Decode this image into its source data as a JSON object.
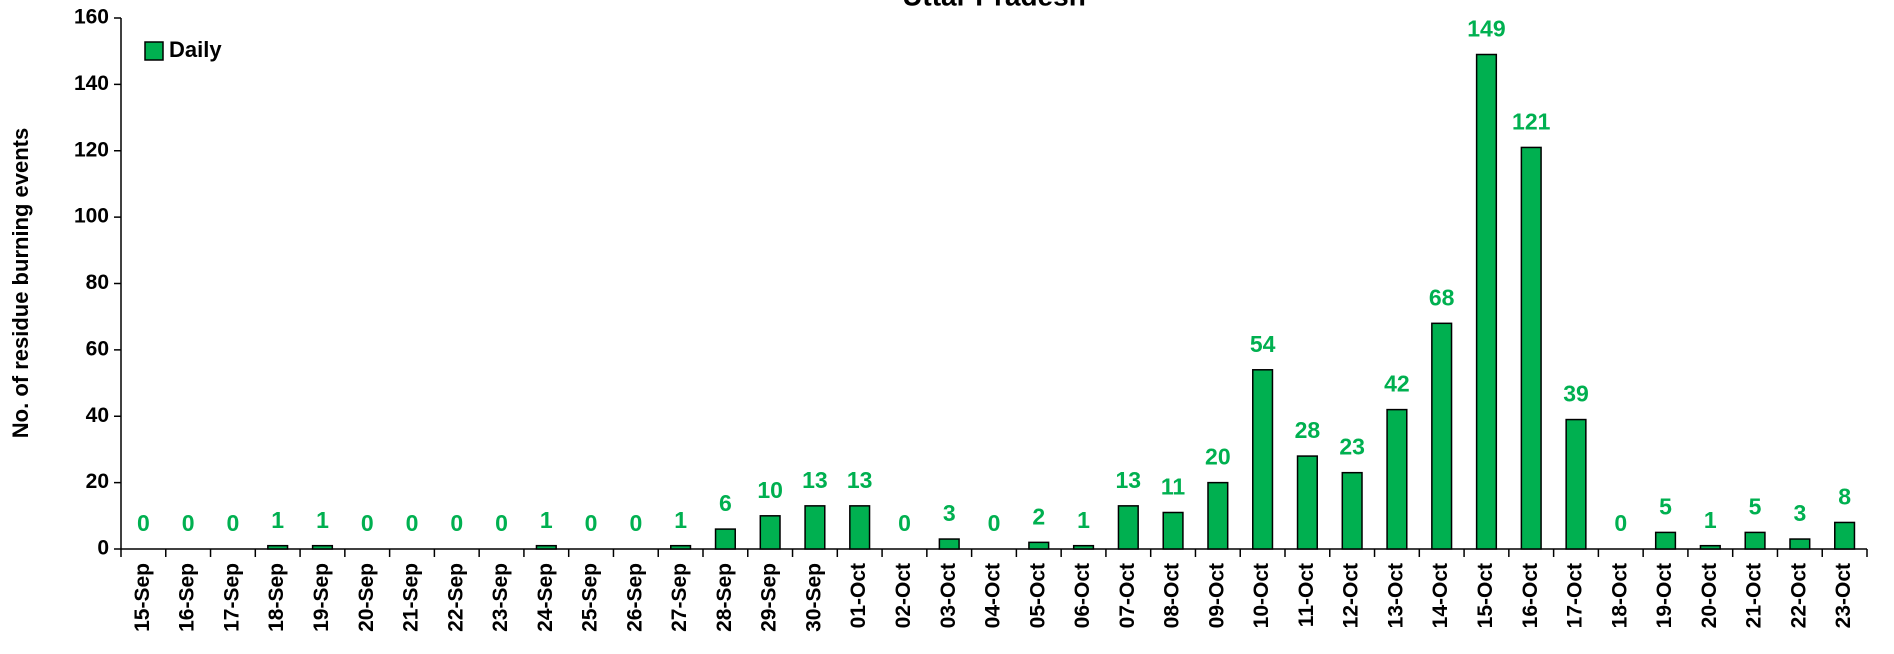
{
  "chart_data": {
    "type": "bar",
    "title": "Uttar Pradesh",
    "y_label": "No. of residue burning events",
    "categories": [
      "15-Sep",
      "16-Sep",
      "17-Sep",
      "18-Sep",
      "19-Sep",
      "20-Sep",
      "21-Sep",
      "22-Sep",
      "23-Sep",
      "24-Sep",
      "25-Sep",
      "26-Sep",
      "27-Sep",
      "28-Sep",
      "29-Sep",
      "30-Sep",
      "01-Oct",
      "02-Oct",
      "03-Oct",
      "04-Oct",
      "05-Oct",
      "06-Oct",
      "07-Oct",
      "08-Oct",
      "09-Oct",
      "10-Oct",
      "11-Oct",
      "12-Oct",
      "13-Oct",
      "14-Oct",
      "15-Oct",
      "16-Oct",
      "17-Oct",
      "18-Oct",
      "19-Oct",
      "20-Oct",
      "21-Oct",
      "22-Oct",
      "23-Oct"
    ],
    "series": [
      {
        "name": "Daily",
        "color": "#00b050",
        "values": [
          0,
          0,
          0,
          1,
          1,
          0,
          0,
          0,
          0,
          1,
          0,
          0,
          1,
          6,
          10,
          13,
          13,
          0,
          3,
          0,
          2,
          1,
          13,
          11,
          20,
          54,
          28,
          23,
          42,
          68,
          149,
          121,
          39,
          0,
          5,
          1,
          5,
          3,
          8
        ]
      }
    ],
    "ylim": [
      0,
      160
    ],
    "yticks": [
      0,
      20,
      40,
      60,
      80,
      100,
      120,
      140,
      160
    ],
    "legend": "top-left",
    "grid": false
  }
}
